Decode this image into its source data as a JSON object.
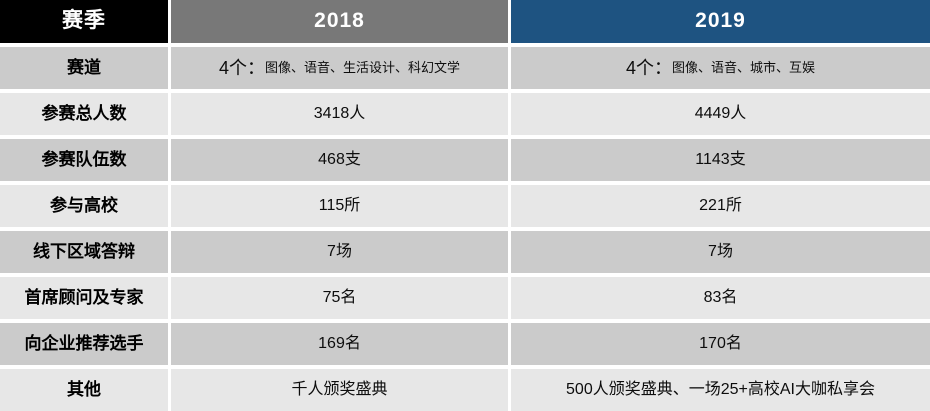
{
  "table": {
    "headers": {
      "season": "赛季",
      "col2018": "2018",
      "col2019": "2019"
    },
    "rows": [
      {
        "label": "赛道",
        "v2018": {
          "num": "4个：",
          "detail": "图像、语音、生活设计、科幻文学"
        },
        "v2019": {
          "num": "4个：",
          "detail": "图像、语音、城市、互娱"
        }
      },
      {
        "label": "参赛总人数",
        "v2018": "3418人",
        "v2019": "4449人"
      },
      {
        "label": "参赛队伍数",
        "v2018": "468支",
        "v2019": "1143支"
      },
      {
        "label": "参与高校",
        "v2018": "115所",
        "v2019": "221所"
      },
      {
        "label": "线下区域答辩",
        "v2018": "7场",
        "v2019": "7场"
      },
      {
        "label": "首席顾问及专家",
        "v2018": "75名",
        "v2019": "83名"
      },
      {
        "label": "向企业推荐选手",
        "v2018": "169名",
        "v2019": "170名"
      },
      {
        "label": "其他",
        "v2018": "千人颁奖盛典",
        "v2019": "500人颁奖盛典、一场25+高校AI大咖私享会"
      }
    ],
    "colors": {
      "header_black": "#000000",
      "header_gray": "#787878",
      "header_blue": "#1e5381",
      "row_medium": "#cbcbcb",
      "row_light": "#e7e7e7",
      "separator": "#ffffff",
      "text": "#000000",
      "header_text": "#ffffff"
    }
  }
}
